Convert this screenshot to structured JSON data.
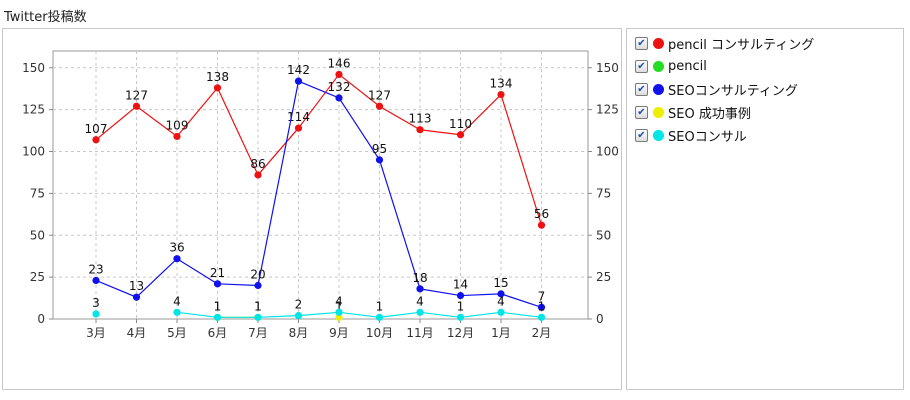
{
  "page": {
    "title": "Twitter投稿数"
  },
  "chart_data": {
    "type": "line",
    "categories": [
      "3月",
      "4月",
      "5月",
      "6月",
      "7月",
      "8月",
      "9月",
      "10月",
      "11月",
      "12月",
      "1月",
      "2月"
    ],
    "ylim": [
      0,
      160
    ],
    "yticks": [
      0,
      25,
      50,
      75,
      100,
      125,
      150
    ],
    "grid": true,
    "legend_placement": "right",
    "series": [
      {
        "name": "pencil コンサルティング",
        "color": "#ee1111",
        "values": [
          107,
          127,
          109,
          138,
          86,
          114,
          146,
          127,
          113,
          110,
          134,
          56
        ]
      },
      {
        "name": "pencil",
        "color": "#22dd22",
        "values": [
          null,
          null,
          null,
          null,
          null,
          null,
          null,
          null,
          null,
          null,
          null,
          null
        ]
      },
      {
        "name": "SEOコンサルティング",
        "color": "#1111ee",
        "values": [
          23,
          13,
          36,
          21,
          20,
          142,
          132,
          95,
          18,
          14,
          15,
          7
        ]
      },
      {
        "name": "SEO 成功事例",
        "color": "#eeee00",
        "values": [
          null,
          null,
          null,
          1,
          1,
          null,
          1,
          null,
          null,
          null,
          null,
          null
        ]
      },
      {
        "name": "SEOコンサル",
        "color": "#00e5e5",
        "values": [
          3,
          null,
          4,
          1,
          1,
          2,
          4,
          1,
          4,
          1,
          4,
          1
        ]
      }
    ]
  },
  "legend": {
    "check_mark": "✔",
    "items": [
      {
        "label": "pencil コンサルティング",
        "color": "#ee1111"
      },
      {
        "label": "pencil",
        "color": "#22dd22"
      },
      {
        "label": "SEOコンサルティング",
        "color": "#1111ee"
      },
      {
        "label": "SEO 成功事例",
        "color": "#eeee00"
      },
      {
        "label": "SEOコンサル",
        "color": "#00e5e5"
      }
    ]
  }
}
